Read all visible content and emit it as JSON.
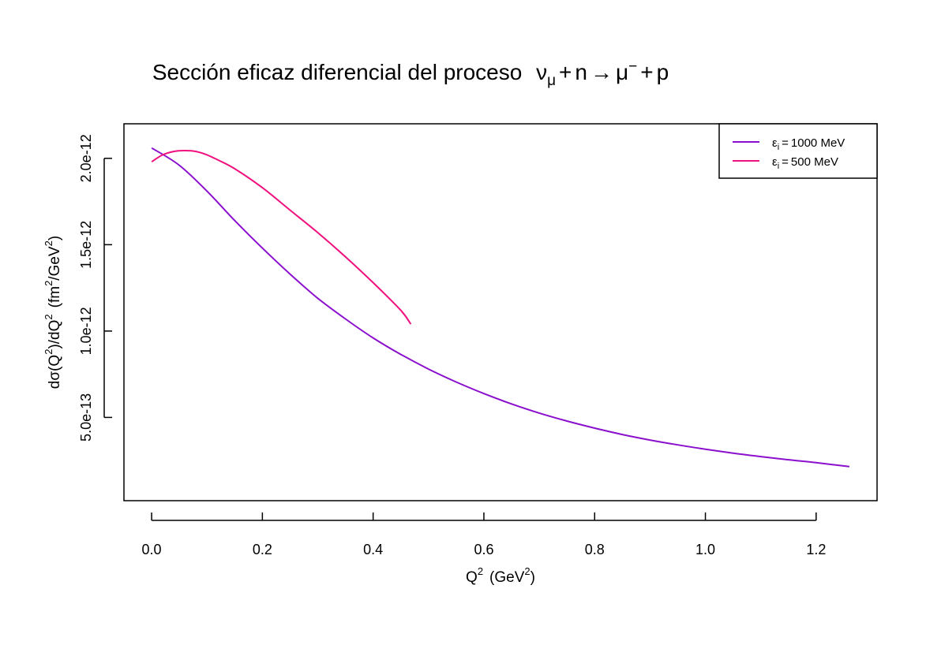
{
  "chart_data": {
    "type": "line",
    "title": {
      "text": "Sección  eficaz  diferencial  del  proceso",
      "formula": {
        "nu": "ν",
        "nu_sub": "μ",
        "plus1": "+",
        "n": "n",
        "arrow": "→",
        "mu": "μ",
        "mu_sup": "−",
        "plus2": "+",
        "p": "p"
      }
    },
    "xlabel": {
      "base": "Q",
      "sup1": "2",
      "unit_open": "(GeV",
      "sup2": "2",
      "unit_close": ")"
    },
    "ylabel": {
      "part1": "dσ(Q",
      "sup1": "2",
      "part2": ")/dQ",
      "sup2": "2",
      "part3": "(fm",
      "sup3": "2",
      "part4": "/GeV",
      "sup4": "2",
      "part5": ")"
    },
    "xlim": [
      -0.05,
      1.31
    ],
    "ylim": [
      1.8e-14,
      2.2e-12
    ],
    "x_ticks": [
      {
        "value": 0.0,
        "label": "0.0"
      },
      {
        "value": 0.2,
        "label": "0.2"
      },
      {
        "value": 0.4,
        "label": "0.4"
      },
      {
        "value": 0.6,
        "label": "0.6"
      },
      {
        "value": 0.8,
        "label": "0.8"
      },
      {
        "value": 1.0,
        "label": "1.0"
      },
      {
        "value": 1.2,
        "label": "1.2"
      }
    ],
    "y_ticks": [
      {
        "value": 5e-13,
        "label": "5.0e-13"
      },
      {
        "value": 1e-12,
        "label": "1.0e-12"
      },
      {
        "value": 1.5e-12,
        "label": "1.5e-12"
      },
      {
        "value": 2e-12,
        "label": "2.0e-12"
      }
    ],
    "legend_position": "top-right",
    "series": [
      {
        "name": "1000  MeV",
        "legend_symbol": "ε",
        "legend_sub": "i",
        "legend_eq": "=",
        "color": "#8B10CE",
        "x": [
          0.0,
          0.05,
          0.1,
          0.15,
          0.2,
          0.25,
          0.3,
          0.35,
          0.4,
          0.45,
          0.5,
          0.55,
          0.6,
          0.65,
          0.7,
          0.75,
          0.8,
          0.85,
          0.9,
          0.95,
          1.0,
          1.05,
          1.1,
          1.15,
          1.2,
          1.26
        ],
        "y": [
          2.06e-12,
          1.96e-12,
          1.81e-12,
          1.64e-12,
          1.48e-12,
          1.33e-12,
          1.19e-12,
          1.07e-12,
          9.6e-13,
          8.65e-13,
          7.8e-13,
          7.05e-13,
          6.38e-13,
          5.78e-13,
          5.25e-13,
          4.79e-13,
          4.38e-13,
          4.01e-13,
          3.69e-13,
          3.41e-13,
          3.16e-13,
          2.93e-13,
          2.73e-13,
          2.55e-13,
          2.38e-13,
          2.15e-13
        ]
      },
      {
        "name": "500  MeV",
        "legend_symbol": "ε",
        "legend_sub": "i",
        "legend_eq": "=",
        "color": "#F0107E",
        "x": [
          0.0,
          0.02,
          0.04,
          0.06,
          0.08,
          0.1,
          0.12,
          0.15,
          0.2,
          0.25,
          0.3,
          0.35,
          0.4,
          0.45,
          0.468
        ],
        "y": [
          1.98e-12,
          2.02e-12,
          2.04e-12,
          2.045e-12,
          2.04e-12,
          2.02e-12,
          1.99e-12,
          1.94e-12,
          1.83e-12,
          1.7e-12,
          1.57e-12,
          1.43e-12,
          1.28e-12,
          1.12e-12,
          1.04e-12
        ]
      }
    ]
  }
}
